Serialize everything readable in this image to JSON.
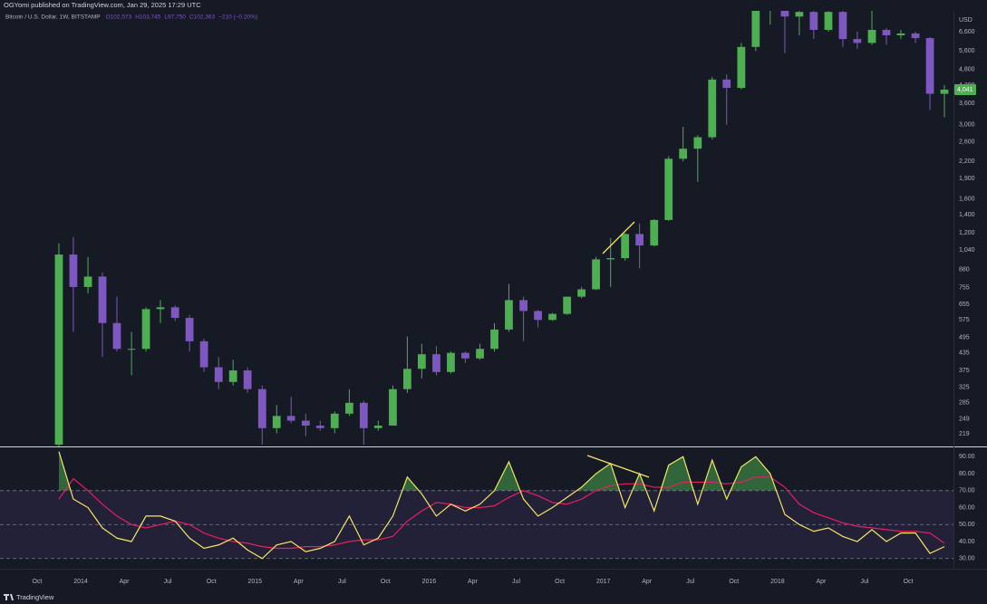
{
  "header": {
    "publisher": "OGYomi published on TradingView.com, Jan 29, 2025 17:29 UTC"
  },
  "footer": {
    "brand": "TradingView"
  },
  "chart_data": [
    {
      "type": "candlestick",
      "title": "Bitcoin / U.S. Dollar, 1W, BITSTAMP",
      "legend_ohlc": [
        "O102,573",
        "H103,745",
        "L97,750",
        "C102,363",
        "−210 (−0.20%)"
      ],
      "axis_unit": "USD",
      "log_scale": true,
      "grid": false,
      "up_color": "#4caf50",
      "down_color": "#7e57c2",
      "xlim": [
        2013.537,
        2019.01
      ],
      "ylim": [
        197,
        7870
      ],
      "yticks": [
        219,
        249,
        285,
        325,
        375,
        435,
        495,
        575,
        655,
        755,
        880,
        {
          "value": 1040,
          "label": "1,040"
        },
        {
          "value": 1200,
          "label": "1,200"
        },
        {
          "value": 1400,
          "label": "1,400"
        },
        {
          "value": 1600,
          "label": "1,600"
        },
        {
          "value": 1900,
          "label": "1,900"
        },
        {
          "value": 2200,
          "label": "2,200"
        },
        {
          "value": 2600,
          "label": "2,600"
        },
        {
          "value": 3000,
          "label": "3,000"
        },
        {
          "value": 3600,
          "label": "3,600"
        },
        {
          "value": 4200,
          "label": "4,200"
        },
        {
          "value": 4800,
          "label": "4,800"
        },
        {
          "value": 5600,
          "label": "5,600"
        },
        {
          "value": 6600,
          "label": "6,600"
        }
      ],
      "last_price": {
        "value": 4041,
        "label": "4,041"
      },
      "x": [
        2013.875,
        2013.958,
        2014.042,
        2014.125,
        2014.208,
        2014.292,
        2014.375,
        2014.458,
        2014.542,
        2014.625,
        2014.708,
        2014.792,
        2014.875,
        2014.958,
        2015.042,
        2015.125,
        2015.208,
        2015.292,
        2015.375,
        2015.458,
        2015.542,
        2015.625,
        2015.708,
        2015.792,
        2015.875,
        2015.958,
        2016.042,
        2016.125,
        2016.208,
        2016.292,
        2016.375,
        2016.458,
        2016.542,
        2016.625,
        2016.708,
        2016.792,
        2016.875,
        2016.958,
        2017.042,
        2017.125,
        2017.208,
        2017.292,
        2017.375,
        2017.458,
        2017.542,
        2017.625,
        2017.708,
        2017.792,
        2017.875,
        2017.958,
        2018.042,
        2018.125,
        2018.208,
        2018.292,
        2018.375,
        2018.458,
        2018.542,
        2018.625,
        2018.708,
        2018.792,
        2018.875,
        2018.958
      ],
      "open": [
        200,
        1000,
        760,
        830,
        560,
        450,
        450,
        630,
        640,
        585,
        480,
        385,
        340,
        375,
        320,
        230,
        255,
        245,
        235,
        230,
        260,
        285,
        230,
        235,
        320,
        380,
        430,
        370,
        435,
        415,
        450,
        530,
        680,
        620,
        575,
        605,
        700,
        745,
        960,
        970,
        1190,
        1080,
        1340,
        2250,
        2450,
        2700,
        4400,
        4100,
        5800,
        7900,
        8500,
        7500,
        7800,
        6700,
        7800,
        6200,
        6000,
        6700,
        6400,
        6500,
        6250,
        3900
      ],
      "high": [
        1100,
        1160,
        980,
        860,
        700,
        520,
        640,
        680,
        650,
        600,
        490,
        420,
        410,
        385,
        330,
        280,
        300,
        260,
        245,
        265,
        320,
        290,
        245,
        330,
        500,
        470,
        460,
        440,
        440,
        470,
        560,
        780,
        700,
        625,
        610,
        700,
        760,
        980,
        1150,
        1200,
        1300,
        1350,
        2300,
        2950,
        2750,
        4500,
        4600,
        6000,
        8000,
        9000,
        9000,
        8500,
        8000,
        7900,
        8000,
        6600,
        8000,
        6800,
        6700,
        6600,
        6300,
        4200
      ],
      "low": [
        190,
        520,
        720,
        420,
        440,
        360,
        440,
        560,
        570,
        440,
        370,
        320,
        330,
        310,
        200,
        220,
        240,
        215,
        225,
        220,
        255,
        200,
        225,
        235,
        310,
        350,
        360,
        365,
        400,
        410,
        440,
        520,
        480,
        540,
        570,
        600,
        690,
        740,
        760,
        950,
        890,
        1070,
        1330,
        2200,
        1850,
        2650,
        3000,
        4050,
        5600,
        7000,
        5500,
        6400,
        6200,
        6600,
        5800,
        5700,
        5900,
        5900,
        6200,
        6000,
        3400,
        3200
      ],
      "close": [
        1000,
        760,
        830,
        560,
        450,
        450,
        630,
        640,
        585,
        480,
        385,
        340,
        375,
        320,
        230,
        255,
        245,
        235,
        230,
        260,
        285,
        230,
        235,
        320,
        380,
        430,
        370,
        435,
        415,
        450,
        530,
        680,
        620,
        575,
        605,
        700,
        745,
        960,
        970,
        1190,
        1080,
        1340,
        2250,
        2450,
        2700,
        4400,
        4100,
        5800,
        7900,
        8500,
        7500,
        7800,
        6700,
        7800,
        6200,
        6000,
        6700,
        6400,
        6500,
        6250,
        3900,
        4041
      ]
    },
    {
      "type": "line",
      "xlim": [
        2013.537,
        2019.01
      ],
      "ylim": [
        24,
        95.5
      ],
      "band": [
        30,
        70
      ],
      "hlines": [
        70,
        50,
        30
      ],
      "overbought_color": "#4caf50",
      "band_color": "#7e57c2",
      "yticks": [
        {
          "value": 30,
          "label": "30.00"
        },
        {
          "value": 40,
          "label": "40.00"
        },
        {
          "value": 50,
          "label": "50.00"
        },
        {
          "value": 60,
          "label": "60.00"
        },
        {
          "value": 70,
          "label": "70.00"
        },
        {
          "value": 80,
          "label": "80.00"
        },
        {
          "value": 90,
          "label": "90.00"
        }
      ],
      "xticks": [
        {
          "value": 2013.75,
          "label": "Oct"
        },
        {
          "value": 2014,
          "label": "2014"
        },
        {
          "value": 2014.25,
          "label": "Apr"
        },
        {
          "value": 2014.5,
          "label": "Jul"
        },
        {
          "value": 2014.75,
          "label": "Oct"
        },
        {
          "value": 2015,
          "label": "2015"
        },
        {
          "value": 2015.25,
          "label": "Apr"
        },
        {
          "value": 2015.5,
          "label": "Jul"
        },
        {
          "value": 2015.75,
          "label": "Oct"
        },
        {
          "value": 2016,
          "label": "2016"
        },
        {
          "value": 2016.25,
          "label": "Apr"
        },
        {
          "value": 2016.5,
          "label": "Jul"
        },
        {
          "value": 2016.75,
          "label": "Oct"
        },
        {
          "value": 2017,
          "label": "2017"
        },
        {
          "value": 2017.25,
          "label": "Apr"
        },
        {
          "value": 2017.5,
          "label": "Jul"
        },
        {
          "value": 2017.75,
          "label": "Oct"
        },
        {
          "value": 2018,
          "label": "2018"
        },
        {
          "value": 2018.25,
          "label": "Apr"
        },
        {
          "value": 2018.5,
          "label": "Jul"
        },
        {
          "value": 2018.75,
          "label": "Oct"
        }
      ],
      "x": [
        2013.875,
        2013.958,
        2014.042,
        2014.125,
        2014.208,
        2014.292,
        2014.375,
        2014.458,
        2014.542,
        2014.625,
        2014.708,
        2014.792,
        2014.875,
        2014.958,
        2015.042,
        2015.125,
        2015.208,
        2015.292,
        2015.375,
        2015.458,
        2015.542,
        2015.625,
        2015.708,
        2015.792,
        2015.875,
        2015.958,
        2016.042,
        2016.125,
        2016.208,
        2016.292,
        2016.375,
        2016.458,
        2016.542,
        2016.625,
        2016.708,
        2016.792,
        2016.875,
        2016.958,
        2017.042,
        2017.125,
        2017.208,
        2017.292,
        2017.375,
        2017.458,
        2017.542,
        2017.625,
        2017.708,
        2017.792,
        2017.875,
        2017.958,
        2018.042,
        2018.125,
        2018.208,
        2018.292,
        2018.375,
        2018.458,
        2018.542,
        2018.625,
        2018.708,
        2018.792,
        2018.875,
        2018.958
      ],
      "series": [
        {
          "color": "#f5e663",
          "values": [
            93,
            65,
            60,
            48,
            42,
            40,
            55,
            55,
            52,
            42,
            36,
            38,
            42,
            35,
            30,
            38,
            40,
            34,
            36,
            40,
            55,
            38,
            42,
            55,
            78,
            68,
            55,
            62,
            58,
            62,
            70,
            87,
            65,
            55,
            60,
            66,
            72,
            80,
            86,
            60,
            80,
            58,
            85,
            90,
            62,
            88,
            65,
            84,
            90,
            80,
            56,
            50,
            46,
            48,
            43,
            40,
            47,
            40,
            45,
            45,
            33,
            37
          ]
        },
        {
          "color": "#e91e63",
          "values": [
            65,
            77,
            70,
            62,
            55,
            50,
            48,
            50,
            52,
            50,
            45,
            42,
            40,
            39,
            37,
            36,
            36,
            37,
            37,
            38,
            40,
            41,
            41,
            43,
            52,
            58,
            63,
            62,
            60,
            60,
            61,
            66,
            70,
            67,
            63,
            62,
            65,
            70,
            73,
            74,
            74,
            72,
            72,
            75,
            75,
            75,
            74,
            75,
            78,
            78,
            72,
            62,
            57,
            54,
            51,
            49,
            48,
            47,
            46,
            46,
            45,
            39
          ]
        }
      ]
    }
  ]
}
